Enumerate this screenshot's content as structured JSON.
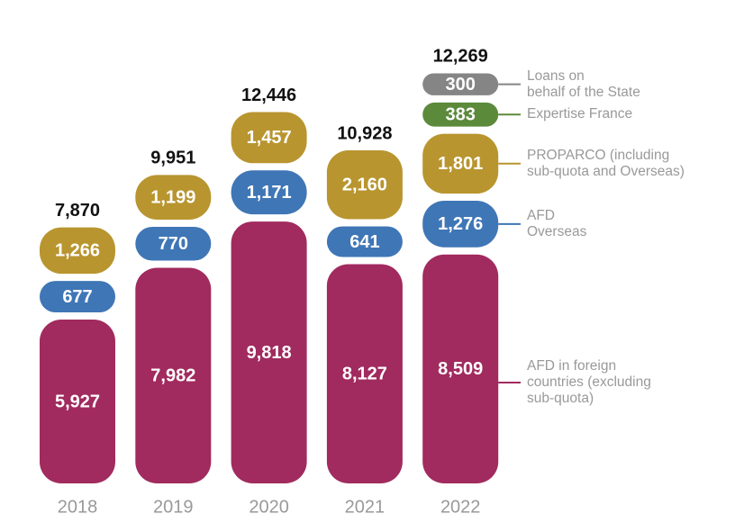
{
  "chart_data": {
    "type": "stacked-pill-bar",
    "categories": [
      "2018",
      "2019",
      "2020",
      "2021",
      "2022"
    ],
    "series": [
      {
        "name": "AFD in foreign\ncountries (excluding\nsub-quota)",
        "color": "#a12a5e",
        "values": [
          5927,
          7982,
          9818,
          8127,
          8509
        ],
        "value_labels": [
          "5,927",
          "7,982",
          "9,818",
          "8,127",
          "8,509"
        ]
      },
      {
        "name": "AFD\n Overseas",
        "color": "#3f76b6",
        "values": [
          677,
          770,
          1171,
          641,
          1276
        ],
        "value_labels": [
          "677",
          "770",
          "1,171",
          "641",
          "1,276"
        ]
      },
      {
        "name": "PROPARCO (including\nsub-quota and Overseas)",
        "color": "#b8952f",
        "values": [
          1266,
          1199,
          1457,
          2160,
          1801
        ],
        "value_labels": [
          "1,266",
          "1,199",
          "1,457",
          "2,160",
          "1,801"
        ]
      },
      {
        "name": "Expertise France",
        "color": "#5b8a3b",
        "values": [
          null,
          null,
          null,
          null,
          383
        ],
        "value_labels": [
          null,
          null,
          null,
          null,
          "383"
        ]
      },
      {
        "name": "Loans on\nbehalf of the State",
        "color": "#858585",
        "values": [
          null,
          null,
          null,
          null,
          300
        ],
        "value_labels": [
          null,
          null,
          null,
          null,
          "300"
        ]
      }
    ],
    "totals": [
      7870,
      9951,
      12446,
      10928,
      12269
    ],
    "total_labels": [
      "7,870",
      "9,951",
      "12,446",
      "10,928",
      "12,269"
    ]
  }
}
